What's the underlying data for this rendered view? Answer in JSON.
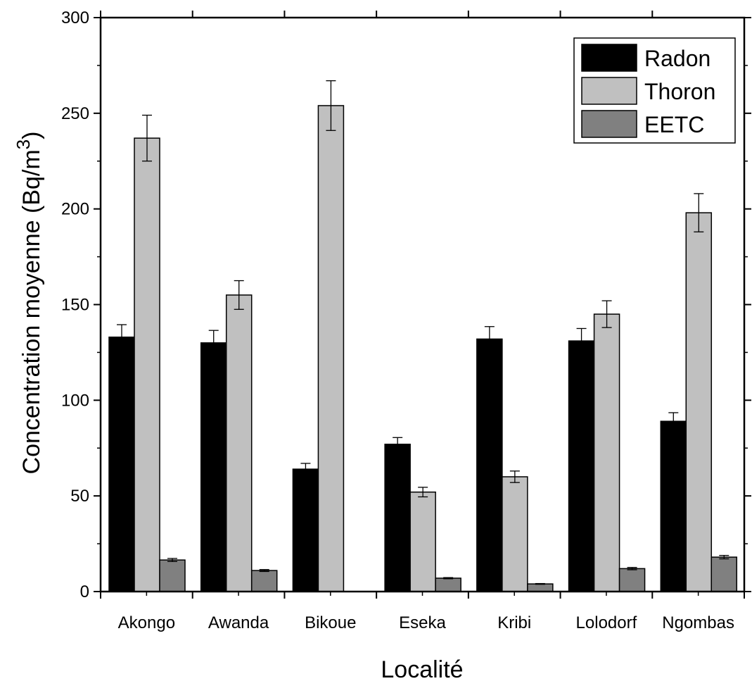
{
  "chart_data": {
    "type": "bar",
    "title": "",
    "xlabel": "Localité",
    "ylabel": "Concentration moyenne (Bq/m",
    "ylabel_superscript": "3",
    "ylabel_close": ")",
    "categories": [
      "Akongo",
      "Awanda",
      "Bikoue",
      "Eseka",
      "Kribi",
      "Lolodorf",
      "Ngombas"
    ],
    "series": [
      {
        "name": "Radon",
        "color": "#000000",
        "values": [
          133,
          130,
          64,
          77,
          132,
          131,
          89
        ],
        "errors": [
          6.5,
          6.5,
          3,
          3.5,
          6.5,
          6.5,
          4.5
        ]
      },
      {
        "name": "Thoron",
        "color": "#c0c0c0",
        "values": [
          237,
          155,
          254,
          52,
          60,
          145,
          198
        ],
        "errors": [
          12,
          7.5,
          13,
          2.5,
          3,
          7,
          10
        ]
      },
      {
        "name": "EETC",
        "color": "#808080",
        "values": [
          16.5,
          11,
          0,
          7,
          4,
          12,
          18
        ],
        "errors": [
          0.8,
          0.5,
          0,
          0.3,
          0.2,
          0.6,
          0.9
        ]
      }
    ],
    "ylim": [
      0,
      300
    ],
    "yticks": [
      0,
      50,
      100,
      150,
      200,
      250,
      300
    ],
    "grid": false,
    "legend_position": "top-right"
  }
}
